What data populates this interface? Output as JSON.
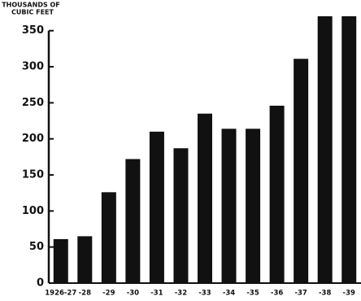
{
  "chart_data": {
    "type": "bar",
    "y_axis_label": [
      "THOUSANDS OF",
      "CUBIC FEET"
    ],
    "categories": [
      "1926-27",
      "-28",
      "-29",
      "-30",
      "-31",
      "-32",
      "-33",
      "-34",
      "-35",
      "-36",
      "-37",
      "-38",
      "-39"
    ],
    "values": [
      61,
      65,
      126,
      172,
      210,
      187,
      235,
      214,
      214,
      246,
      311,
      370,
      370
    ],
    "color": "#111111",
    "ylim": [
      0,
      370
    ],
    "yticks": [
      0,
      50,
      100,
      150,
      200,
      250,
      300,
      350
    ],
    "grid": false
  }
}
